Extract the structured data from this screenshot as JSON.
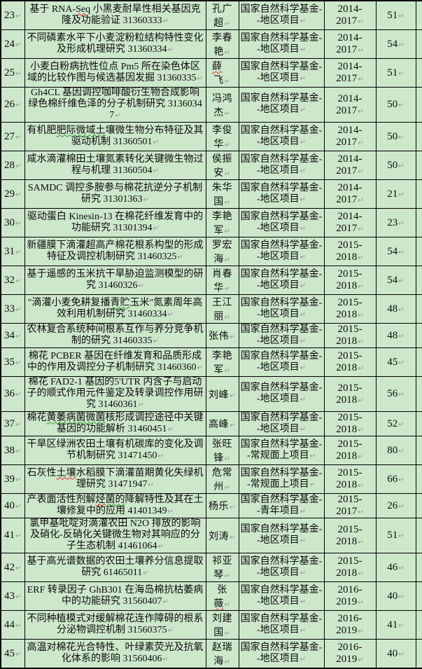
{
  "document": {
    "kind": "grant-project-table",
    "colors": {
      "cell_bg": "#cde7cb",
      "border": "#000000",
      "pilcrow_gray": "#8d9a8d",
      "squiggle_red": "#e03030",
      "squiggle_green": "#2e9e2e"
    },
    "pilcrow_mark": "↵"
  },
  "table": {
    "rows": [
      {
        "no": "23",
        "title": "基于 RNA-Seq 小黑麦耐旱性相关基因克隆及功能验证 31360333",
        "pi": "孔广超",
        "source": "国家自然科学基金--地区项目",
        "years": "2014-2017",
        "amount": "51",
        "lines": 2,
        "squiggles": [
          {
            "t": "Seq",
            "c": "red"
          }
        ]
      },
      {
        "no": "24",
        "title": "不同磷素水平下小麦淀粉粒结构特性变化及形成机理研究 31360334",
        "pi": "李春艳",
        "source": "国家自然科学基金--地区项目",
        "years": "2014-2017",
        "amount": "54",
        "lines": 2
      },
      {
        "no": "25",
        "title": "小麦白粉病抗性位点 Pm5 所在染色体区域的比较作图与候选基因发掘 31360335",
        "pi": "薛　飞",
        "source": "国家自然科学基金--地区项目",
        "years": "2014-2017",
        "amount": "51",
        "lines": 2,
        "pi_squiggles": [
          {
            "t": "薛",
            "c": "red"
          }
        ]
      },
      {
        "no": "26",
        "title": "Gh4CL 基因调控咖啡酸衍生物合成影响绿色棉纤维色泽的分子机制研究 31360347",
        "pi": "冯鸿杰",
        "source": "国家自然科学基金--地区项目",
        "years": "2014-2017",
        "amount": "50",
        "lines": 2
      },
      {
        "no": "27",
        "title": "有机肥肥际微域土壤微生物分布特征及其驱动机制 31360501",
        "pi": "李俊华",
        "source": "国家自然科学基金--地区项目",
        "years": "2014-2017",
        "amount": "50",
        "lines": 2,
        "squiggles": [
          {
            "t": "肥际微域土",
            "c": "green"
          }
        ]
      },
      {
        "no": "28",
        "title": "咸水滴灌棉田土壤氮素转化关键微生物过程与机理 31360504",
        "pi": "侯振安",
        "source": "国家自然科学基金--地区项目",
        "years": "2014-2017",
        "amount": "50",
        "lines": 2
      },
      {
        "no": "29",
        "title": "SAMDC 调控多胺参与棉花抗逆分子机制研究 31301363",
        "pi": "朱华国",
        "source": "国家自然科学基金--地区项目",
        "years": "2014-2017",
        "amount": "21",
        "lines": 2
      },
      {
        "no": "30",
        "title": "驱动蛋白 Kinesin-13 在棉花纤维发育中的功能研究 31301394",
        "pi": "李艳军",
        "source": "国家自然科学基金--地区项目",
        "years": "2014-2017",
        "amount": "23",
        "lines": 2
      },
      {
        "no": "31",
        "title": "新疆膜下滴灌超高产棉花根系构型的形成特征及调控机制研究 31460325",
        "pi": "罗宏海",
        "source": "国家自然科学基金--地区项目",
        "years": "2015-2018",
        "amount": "54",
        "lines": 2
      },
      {
        "no": "32",
        "title": "基于遥感的玉米抗干旱胁迫监测模型的研究 31460326",
        "pi": "肖春华",
        "source": "国家自然科学基金--地区项目",
        "years": "2015-2018",
        "amount": "54",
        "lines": 2
      },
      {
        "no": "33",
        "title": "\"滴灌小麦免耕复播青贮玉米\"氮素周年高效利用机制研究 31460334",
        "pi": "王江丽",
        "source": "国家自然科学基金--地区项目",
        "years": "2015-2018",
        "amount": "48",
        "lines": 2,
        "squiggles": [
          {
            "t": "青贮",
            "c": "green"
          }
        ]
      },
      {
        "no": "34",
        "title": "农林复合系统种间根系互作与养分竞争机制的研究 31460335",
        "pi": "张伟",
        "source": "国家自然科学基金--地区项目",
        "years": "2015-2018",
        "amount": "48",
        "lines": 2
      },
      {
        "no": "35",
        "title": "棉花 PCBER 基因在纤维发育和品质形成中的作用及调控分子机制研究 31460360",
        "pi": "李艳军",
        "source": "国家自然科学基金--地区项目",
        "years": "2015-2018",
        "amount": "45",
        "lines": 2
      },
      {
        "no": "36",
        "title": "棉花 FAD2-1 基因的5'UTR 内含子与启动子的顺式作用元件鉴定及转录调控作用研究 31460361",
        "pi": "刘峰",
        "source": "国家自然科学基金--地区项目",
        "years": "2015-2018",
        "amount": "56",
        "lines": 3
      },
      {
        "no": "37",
        "title": "棉花黄萎病菌微菌核形成调控途径中关键基因的功能解析 31460451",
        "pi": "高峰",
        "source": "国家自然科学基金--地区项目",
        "years": "2015-2018",
        "amount": "52",
        "lines": 2,
        "squiggles": [
          {
            "t": "黄萎病菌微菌",
            "c": "green"
          }
        ]
      },
      {
        "no": "38",
        "title": "干旱区绿洲农田土壤有机碳库的变化及调节机制研究 31471450",
        "pi": "张旺锋",
        "source": "国家自然科学基金--常规面上项目",
        "years": "2015-2018",
        "amount": "80",
        "lines": 2
      },
      {
        "no": "39",
        "title": "石灰性土壤水稻膜下滴灌苗期黄化失绿机理研究 31471947",
        "pi": "危常州",
        "source": "国家自然科学基金--常规面上项目",
        "years": "2015-2018",
        "amount": "66",
        "lines": 2,
        "squiggles": [
          {
            "t": "土壤",
            "c": "red"
          }
        ]
      },
      {
        "no": "40",
        "title": "产表面活性剂解烃菌的降解特性及其在土壤修复中的应用 41401349",
        "pi": "杨乐",
        "source": "国家自然科学基金--青年项目",
        "years": "2015-2017",
        "amount": "26",
        "lines": 2,
        "squiggles": [
          {
            "t": "烃",
            "c": "red"
          },
          {
            "t": "菌的",
            "c": "green"
          }
        ]
      },
      {
        "no": "41",
        "title": "氯甲基吡啶对滴灌农田 N2O 排放的影响及硝化-反硝化关键微生物对其响应的分子生态机制 41461064",
        "pi": "刘涛",
        "source": "国家自然科学基金--地区项目",
        "years": "2015-2018",
        "amount": "51",
        "lines": 3
      },
      {
        "no": "42",
        "title": "基于高光谱数据的农田土壤养分信息提取研究 61465011",
        "pi": "祁亚琴",
        "source": "国家自然科学基金--地区项目",
        "years": "2015-2018",
        "amount": "46",
        "lines": 2
      },
      {
        "no": "43",
        "title": "ERF 转录因子 GhB301 在海岛棉抗枯萎病中的功能研究 31560407",
        "pi": "张　薇",
        "source": "国家自然科学基金--地区项目",
        "years": "2016-2019",
        "amount": "40",
        "lines": 2,
        "pi_squiggles": [
          {
            "t": "薇",
            "c": "red"
          }
        ]
      },
      {
        "no": "44",
        "title": "不同种植模式对缓解棉花连作障碍的根系分泌物调控机制 31560375",
        "pi": "刘建国",
        "source": "国家自然科学基金--地区项目",
        "years": "2016-2019",
        "amount": "41",
        "lines": 2
      },
      {
        "no": "45",
        "title": "高温对棉花光合特性、叶绿素荧光及抗氧化体系的影响 31560406",
        "pi": "赵瑞海",
        "source": "国家自然科学基金--地区项目",
        "years": "2016-2019",
        "amount": "40",
        "lines": 2
      }
    ]
  }
}
